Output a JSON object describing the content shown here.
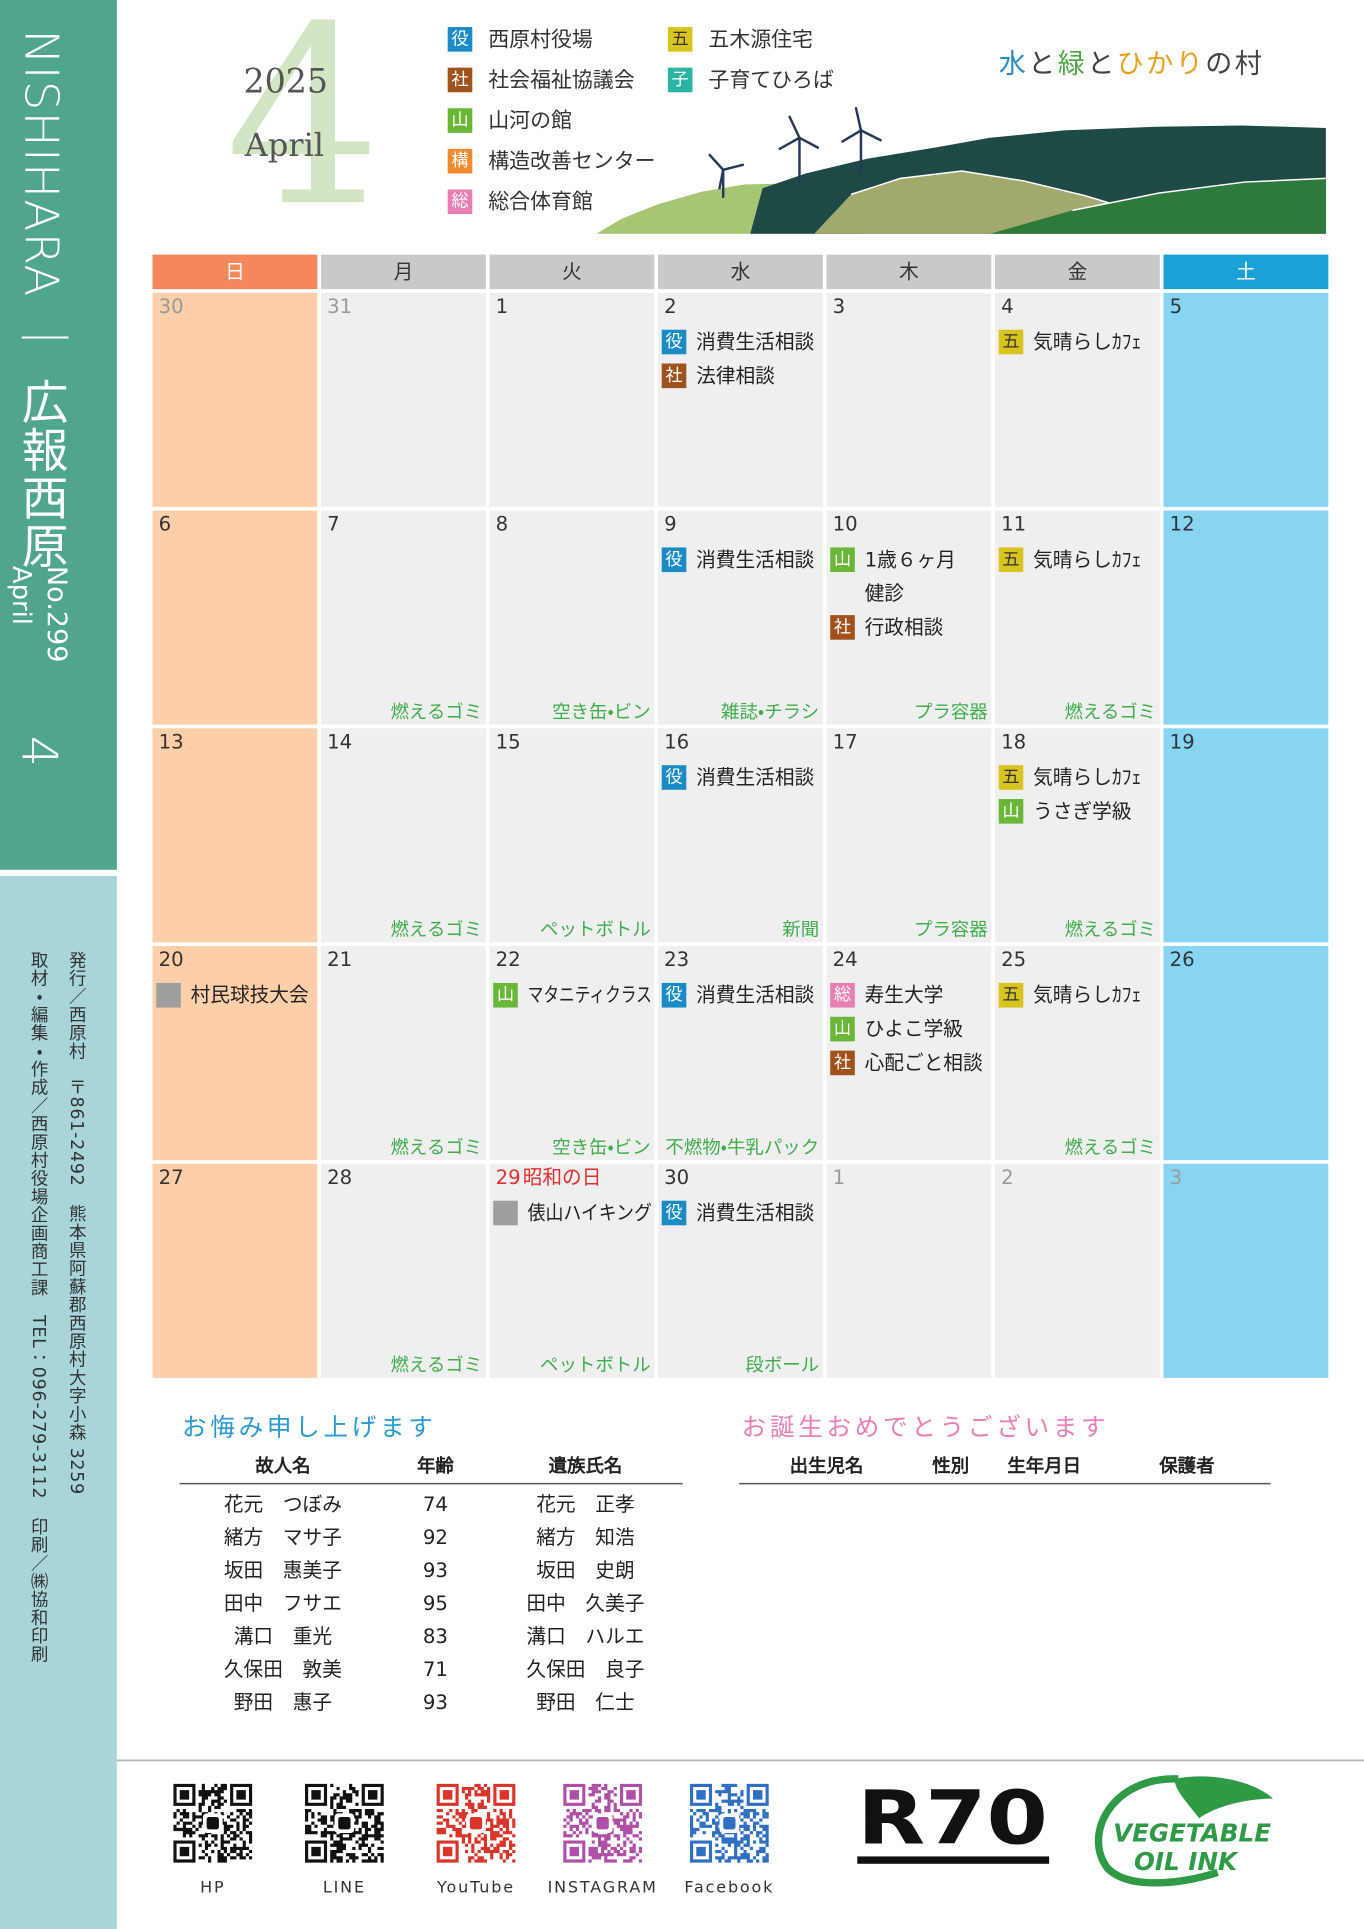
{
  "sidebar": {
    "title": "NISHIHARA ｜ 広報西原",
    "issue": "No.299",
    "month_en": "April",
    "month_num": "4",
    "publisher": [
      "発行／西原村　〒861-2492　熊本県阿蘇郡西原村大字小森 3259",
      "取材・編集・作成／西原村役場企画商工課　TEL：096-279-3112　印刷／㈱協和印刷"
    ]
  },
  "header": {
    "year": "2025",
    "month_en": "April",
    "month_num": "4",
    "tagline": [
      {
        "text": "水",
        "color": "#2a8fc0"
      },
      {
        "text": "と",
        "color": "#444444"
      },
      {
        "text": "緑",
        "color": "#4fa845"
      },
      {
        "text": "と",
        "color": "#444444"
      },
      {
        "text": "ひかり",
        "color": "#e8a020"
      },
      {
        "text": "の村",
        "color": "#444444"
      }
    ]
  },
  "legend": [
    {
      "icon": "役",
      "label": "西原村役場",
      "color": "#1a8bc5"
    },
    {
      "icon": "社",
      "label": "社会福祉協議会",
      "color": "#a0521d"
    },
    {
      "icon": "山",
      "label": "山河の館",
      "color": "#6ab738"
    },
    {
      "icon": "構",
      "label": "構造改善センター",
      "color": "#f08a30"
    },
    {
      "icon": "総",
      "label": "総合体育館",
      "color": "#e87fb3"
    },
    {
      "icon": "五",
      "label": "五木源住宅",
      "color": "#d8c41e",
      "text_color": "#333333"
    },
    {
      "icon": "子",
      "label": "子育てひろば",
      "color": "#2bb3a3"
    }
  ],
  "calendar": {
    "weekdays": [
      {
        "label": "日",
        "header": "#f5875a",
        "cell": "#fccfa8",
        "text": "#ffffff"
      },
      {
        "label": "月",
        "header": "#c9c9c9",
        "cell": "#efefef",
        "text": "#333333"
      },
      {
        "label": "火",
        "header": "#c9c9c9",
        "cell": "#efefef",
        "text": "#333333"
      },
      {
        "label": "水",
        "header": "#c9c9c9",
        "cell": "#efefef",
        "text": "#333333"
      },
      {
        "label": "木",
        "header": "#c9c9c9",
        "cell": "#efefef",
        "text": "#333333"
      },
      {
        "label": "金",
        "header": "#c9c9c9",
        "cell": "#efefef",
        "text": "#333333"
      },
      {
        "label": "土",
        "header": "#1aa2d8",
        "cell": "#88d4f3",
        "text": "#ffffff"
      }
    ],
    "weeks": [
      [
        {
          "day": 30,
          "other_month": true
        },
        {
          "day": 31,
          "other_month": true
        },
        {
          "day": 1
        },
        {
          "day": 2,
          "events": [
            {
              "tag": "役",
              "text": "消費生活相談"
            },
            {
              "tag": "社",
              "text": "法律相談"
            }
          ]
        },
        {
          "day": 3
        },
        {
          "day": 4,
          "events": [
            {
              "tag": "五",
              "text": "気晴らしｶﾌｪ"
            }
          ]
        },
        {
          "day": 5
        }
      ],
      [
        {
          "day": 6
        },
        {
          "day": 7,
          "garbage": "燃えるゴミ"
        },
        {
          "day": 8,
          "garbage": "空き缶・ビン"
        },
        {
          "day": 9,
          "events": [
            {
              "tag": "役",
              "text": "消費生活相談"
            }
          ],
          "garbage": "雑誌・チラシ"
        },
        {
          "day": 10,
          "events": [
            {
              "tag": "山",
              "text": [
                "1歳６ヶ月",
                "健診"
              ]
            },
            {
              "tag": "社",
              "text": "行政相談"
            }
          ],
          "garbage": "プラ容器"
        },
        {
          "day": 11,
          "events": [
            {
              "tag": "五",
              "text": "気晴らしｶﾌｪ"
            }
          ],
          "garbage": "燃えるゴミ"
        },
        {
          "day": 12
        }
      ],
      [
        {
          "day": 13
        },
        {
          "day": 14,
          "garbage": "燃えるゴミ"
        },
        {
          "day": 15,
          "garbage": "ペットボトル"
        },
        {
          "day": 16,
          "events": [
            {
              "tag": "役",
              "text": "消費生活相談"
            }
          ],
          "garbage": "新聞"
        },
        {
          "day": 17,
          "garbage": "プラ容器"
        },
        {
          "day": 18,
          "events": [
            {
              "tag": "五",
              "text": "気晴らしｶﾌｪ"
            },
            {
              "tag": "山",
              "text": "うさぎ学級"
            }
          ],
          "garbage": "燃えるゴミ"
        },
        {
          "day": 19
        }
      ],
      [
        {
          "day": 20,
          "events": [
            {
              "text": "村民球技大会"
            }
          ]
        },
        {
          "day": 21,
          "garbage": "燃えるゴミ"
        },
        {
          "day": 22,
          "events": [
            {
              "tag": "山",
              "text": "マタニティクラス"
            }
          ],
          "garbage": "空き缶・ビン"
        },
        {
          "day": 23,
          "events": [
            {
              "tag": "役",
              "text": "消費生活相談"
            }
          ],
          "garbage": "不燃物・牛乳パック"
        },
        {
          "day": 24,
          "events": [
            {
              "tag": "総",
              "text": "寿生大学"
            },
            {
              "tag": "山",
              "text": "ひよこ学級"
            },
            {
              "tag": "社",
              "text": "心配ごと相談"
            }
          ]
        },
        {
          "day": 25,
          "events": [
            {
              "tag": "五",
              "text": "気晴らしｶﾌｪ"
            }
          ],
          "garbage": "燃えるゴミ"
        },
        {
          "day": 26
        }
      ],
      [
        {
          "day": 27
        },
        {
          "day": 28,
          "garbage": "燃えるゴミ"
        },
        {
          "day": 29,
          "holiday": "昭和の日",
          "events": [
            {
              "text": "俵山ハイキング"
            }
          ],
          "garbage": "ペットボトル"
        },
        {
          "day": 30,
          "events": [
            {
              "tag": "役",
              "text": "消費生活相談"
            }
          ],
          "garbage": "段ボール"
        },
        {
          "day": 1,
          "other_month": true
        },
        {
          "day": 2,
          "other_month": true
        },
        {
          "day": 3,
          "other_month": true
        }
      ]
    ]
  },
  "obituary": {
    "title": "お悔み申し上げます",
    "columns": [
      "故人名",
      "年齢",
      "遺族氏名"
    ],
    "rows": [
      [
        "花元　つぼみ",
        74,
        "花元　正孝"
      ],
      [
        "緒方　マサ子",
        92,
        "緒方　知浩"
      ],
      [
        "坂田　惠美子",
        93,
        "坂田　史朗"
      ],
      [
        "田中　フサエ",
        95,
        "田中　久美子"
      ],
      [
        "溝口　重光",
        83,
        "溝口　ハルエ"
      ],
      [
        "久保田　敦美",
        71,
        "久保田　良子"
      ],
      [
        "野田　惠子",
        93,
        "野田　仁士"
      ]
    ]
  },
  "births": {
    "title": "お誕生おめでとうございます",
    "columns": [
      "出生児名",
      "性別",
      "生年月日",
      "保護者"
    ]
  },
  "footer": {
    "links": [
      {
        "label": "HP",
        "color": "#111111"
      },
      {
        "label": "LINE",
        "color": "#111111"
      },
      {
        "label": "YouTube",
        "color": "#d8362a"
      },
      {
        "label": "INSTAGRAM",
        "color": "#b04fa8"
      },
      {
        "label": "Facebook",
        "color": "#2f6fc4"
      }
    ],
    "r70": "R70",
    "ink": [
      "VEGETABLE",
      "OIL INK"
    ]
  }
}
